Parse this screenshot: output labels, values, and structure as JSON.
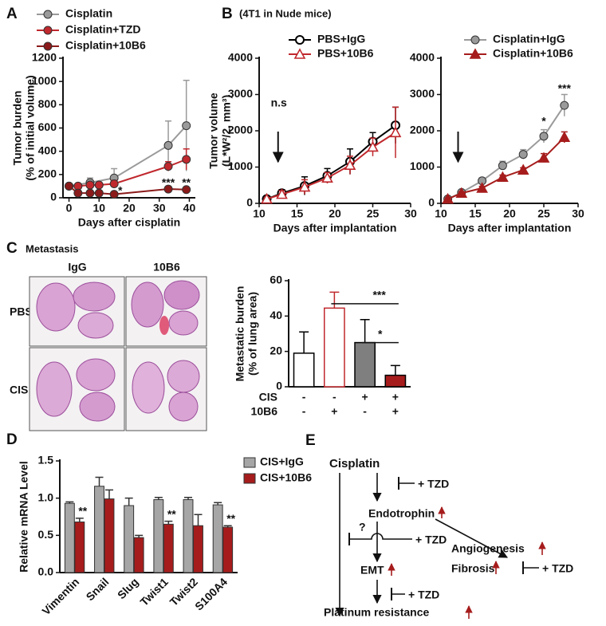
{
  "chart_data": [
    {
      "panel": "A",
      "type": "line",
      "xlabel": "Days after cisplatin",
      "ylabel": [
        "Tumor burden",
        "(% of initial volume)"
      ],
      "xlim": [
        -2,
        42
      ],
      "xticks": [
        0,
        10,
        20,
        30,
        40
      ],
      "ylim": [
        0,
        1200
      ],
      "yticks": [
        0,
        200,
        400,
        600,
        800,
        1000,
        1200
      ],
      "series": [
        {
          "name": "Cisplatin",
          "color": "#9a9a9a",
          "marker": "circle",
          "x": [
            0,
            7,
            15,
            33,
            39
          ],
          "values": [
            100,
            130,
            170,
            450,
            620
          ],
          "errors": [
            10,
            40,
            80,
            210,
            390
          ]
        },
        {
          "name": "Cisplatin+TZD",
          "color": "#c0282d",
          "marker": "circle",
          "x": [
            0,
            3,
            7,
            10,
            15,
            33,
            39
          ],
          "values": [
            100,
            100,
            110,
            110,
            120,
            270,
            330
          ],
          "errors": [
            10,
            15,
            20,
            20,
            30,
            40,
            90
          ]
        },
        {
          "name": "Cisplatin+10B6",
          "color": "#8b1a1a",
          "marker": "circle",
          "x": [
            0,
            3,
            7,
            10,
            15,
            33,
            39
          ],
          "values": [
            100,
            40,
            40,
            40,
            30,
            75,
            70
          ],
          "errors": [
            5,
            5,
            5,
            5,
            5,
            10,
            10
          ]
        }
      ],
      "annotations": [
        {
          "text": "*",
          "x": 17,
          "y": 55
        },
        {
          "text": "***",
          "x": 33,
          "y": 125
        },
        {
          "text": "**",
          "x": 39,
          "y": 125
        }
      ]
    },
    {
      "panel": "B",
      "subtitle": "(4T1 in Nude mice)",
      "type": "line",
      "xlabel": "Days after implantation",
      "ylabel": [
        "Tumor volume",
        "(L*W²/2, mm³)"
      ],
      "xlim": [
        10,
        30
      ],
      "xticks": [
        10,
        15,
        20,
        25,
        30
      ],
      "ylim": [
        0,
        4000
      ],
      "yticks": [
        0,
        1000,
        2000,
        3000,
        4000
      ],
      "arrow_x": 12.5,
      "series": [
        {
          "name": "PBS+IgG",
          "color": "#000000",
          "marker": "circle",
          "open": true,
          "x": [
            11,
            13,
            16,
            19,
            22,
            25,
            28
          ],
          "values": [
            120,
            280,
            480,
            760,
            1150,
            1700,
            2150
          ],
          "errors": [
            30,
            100,
            250,
            200,
            350,
            250,
            500
          ]
        },
        {
          "name": "PBS+10B6",
          "color": "#c0282d",
          "marker": "triangle",
          "open": true,
          "x": [
            11,
            13,
            16,
            19,
            22,
            25,
            28
          ],
          "values": [
            120,
            250,
            450,
            700,
            1050,
            1550,
            1950
          ],
          "errors": [
            30,
            100,
            200,
            150,
            250,
            250,
            700
          ]
        }
      ],
      "annotations": [
        {
          "text": "n.s",
          "x": 12.6,
          "y": 2750
        }
      ]
    },
    {
      "type": "line",
      "xlabel": "Days after implantation",
      "xlim": [
        10,
        30
      ],
      "xticks": [
        10,
        15,
        20,
        25,
        30
      ],
      "ylim": [
        0,
        4000
      ],
      "yticks": [
        0,
        1000,
        2000,
        3000,
        4000
      ],
      "arrow_x": 12.5,
      "series": [
        {
          "name": "Cisplatin+IgG",
          "color": "#9a9a9a",
          "marker": "circle",
          "x": [
            11,
            13,
            16,
            19,
            22,
            25,
            28
          ],
          "values": [
            120,
            300,
            620,
            1040,
            1350,
            1850,
            2700
          ],
          "errors": [
            30,
            50,
            80,
            120,
            130,
            180,
            300
          ]
        },
        {
          "name": "Cisplatin+10B6",
          "color": "#a61c1c",
          "marker": "triangle",
          "x": [
            11,
            13,
            16,
            19,
            22,
            25,
            28
          ],
          "values": [
            120,
            280,
            420,
            720,
            920,
            1250,
            1820
          ],
          "errors": [
            30,
            40,
            50,
            60,
            60,
            120,
            150
          ]
        }
      ],
      "annotations": [
        {
          "text": "*",
          "x": 25,
          "y": 2250
        },
        {
          "text": "***",
          "x": 28,
          "y": 3150
        }
      ]
    },
    {
      "type": "bar",
      "ylabel": [
        "Metastatic burden",
        "(% of lung area)"
      ],
      "ylim": [
        0,
        60
      ],
      "yticks": [
        0,
        20,
        40,
        60
      ],
      "values": [
        19,
        44.5,
        25,
        6.5
      ],
      "errors": [
        12,
        9,
        13,
        5.5
      ],
      "colors": [
        "#ffffff",
        "#ffffff",
        "#7f7f7f",
        "#a61c1c"
      ],
      "edge_colors": [
        "#000000",
        "#c0282d",
        "#000000",
        "#000000"
      ],
      "sign_rows": [
        {
          "name": "CIS",
          "signs": [
            "-",
            "-",
            "+",
            "+"
          ]
        },
        {
          "name": "10B6",
          "signs": [
            "-",
            "+",
            "-",
            "+"
          ]
        }
      ],
      "brackets": [
        {
          "text": "***",
          "from": 1,
          "to": 3,
          "y": 47
        },
        {
          "text": "*",
          "from": 2,
          "to": 3,
          "y": 25
        }
      ]
    },
    {
      "panel": "D",
      "type": "grouped_bar",
      "ylabel": "Relative mRNA Level",
      "categories": [
        "Vimentin",
        "Snail",
        "Slug",
        "Twist1",
        "Twist2",
        "S100A4"
      ],
      "ylim": [
        0,
        1.5
      ],
      "yticks": [
        {
          "value": 0,
          "label": "0.0"
        },
        {
          "value": 0.5,
          "label": "0.5"
        },
        {
          "value": 1,
          "label": "1.0"
        },
        {
          "value": 1.5,
          "label": "1.5"
        }
      ],
      "series": [
        {
          "name": "CIS+IgG",
          "color": "#a6a6a6",
          "values": [
            0.93,
            1.16,
            0.9,
            0.98,
            0.98,
            0.91
          ],
          "errors": [
            0.02,
            0.12,
            0.1,
            0.03,
            0.03,
            0.03
          ]
        },
        {
          "name": "CIS+10B6",
          "color": "#a61c1c",
          "values": [
            0.68,
            0.99,
            0.47,
            0.65,
            0.63,
            0.61
          ],
          "errors": [
            0.05,
            0.12,
            0.03,
            0.04,
            0.15,
            0.02
          ]
        }
      ],
      "annotations": [
        {
          "text": "**",
          "category": 0,
          "series": 1
        },
        {
          "text": "**",
          "category": 3,
          "series": 1
        },
        {
          "text": "**",
          "category": 5,
          "series": 1
        }
      ]
    }
  ],
  "metastasis": {
    "panel": "C",
    "title": "Metastasis",
    "columns": [
      "IgG",
      "10B6"
    ],
    "rows": [
      "PBS",
      "CIS"
    ]
  },
  "diagram": {
    "panel": "E",
    "nodes": [
      "Cisplatin",
      "Endotrophin",
      "EMT",
      "Angiogenesis",
      "Fibrosis",
      "Platinum resistance"
    ],
    "inhibitors": [
      "+ TZD",
      "+ TZD",
      "+ TZD",
      "+ TZD"
    ],
    "question": "?"
  }
}
